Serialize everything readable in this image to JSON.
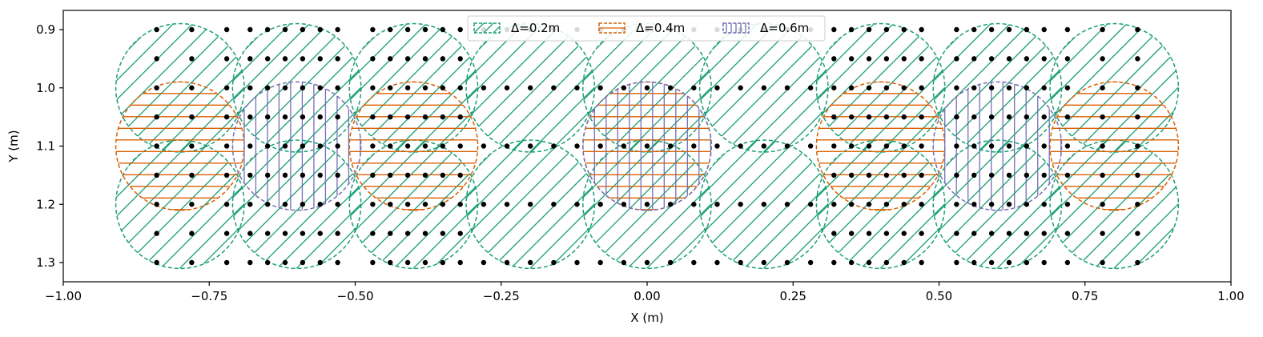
{
  "chart_data": {
    "type": "scatter",
    "title": "",
    "xlabel": "X (m)",
    "ylabel": "Y (m)",
    "xlim": [
      -1.0,
      1.0
    ],
    "ylim": [
      0.9,
      1.3
    ],
    "y_inverted": true,
    "grid": false,
    "legend_placement": "top-center",
    "x_ticks": [
      {
        "value": -1.0,
        "label": "−1.00"
      },
      {
        "value": -0.75,
        "label": "−0.75"
      },
      {
        "value": -0.5,
        "label": "−0.50"
      },
      {
        "value": -0.25,
        "label": "−0.25"
      },
      {
        "value": 0.0,
        "label": "0.00"
      },
      {
        "value": 0.25,
        "label": "0.25"
      },
      {
        "value": 0.5,
        "label": "0.50"
      },
      {
        "value": 0.75,
        "label": "0.75"
      },
      {
        "value": 1.0,
        "label": "1.00"
      }
    ],
    "y_ticks": [
      {
        "value": 0.9,
        "label": "0.9"
      },
      {
        "value": 1.0,
        "label": "1.0"
      },
      {
        "value": 1.1,
        "label": "1.1"
      },
      {
        "value": 1.2,
        "label": "1.2"
      },
      {
        "value": 1.3,
        "label": "1.3"
      }
    ],
    "circle_radius": 0.11,
    "legend": [
      {
        "name": "Δ=0.2m",
        "color": "#1b9e77",
        "hatch": "diagonal"
      },
      {
        "name": "Δ=0.4m",
        "color": "#d95f02",
        "hatch": "horizontal"
      },
      {
        "name": "Δ=0.6m",
        "color": "#7570b3",
        "hatch": "vertical"
      }
    ],
    "regions": [
      {
        "x": -0.8,
        "y": 1.0,
        "delta": 0.2
      },
      {
        "x": -0.8,
        "y": 1.2,
        "delta": 0.2
      },
      {
        "x": -0.6,
        "y": 1.0,
        "delta": 0.2
      },
      {
        "x": -0.6,
        "y": 1.2,
        "delta": 0.2
      },
      {
        "x": -0.4,
        "y": 1.0,
        "delta": 0.2
      },
      {
        "x": -0.4,
        "y": 1.2,
        "delta": 0.2
      },
      {
        "x": -0.2,
        "y": 1.0,
        "delta": 0.2
      },
      {
        "x": -0.2,
        "y": 1.2,
        "delta": 0.2
      },
      {
        "x": 0.0,
        "y": 1.0,
        "delta": 0.2
      },
      {
        "x": 0.0,
        "y": 1.2,
        "delta": 0.2
      },
      {
        "x": 0.2,
        "y": 1.0,
        "delta": 0.2
      },
      {
        "x": 0.2,
        "y": 1.2,
        "delta": 0.2
      },
      {
        "x": 0.4,
        "y": 1.0,
        "delta": 0.2
      },
      {
        "x": 0.4,
        "y": 1.2,
        "delta": 0.2
      },
      {
        "x": 0.6,
        "y": 1.0,
        "delta": 0.2
      },
      {
        "x": 0.6,
        "y": 1.2,
        "delta": 0.2
      },
      {
        "x": 0.8,
        "y": 1.0,
        "delta": 0.2
      },
      {
        "x": 0.8,
        "y": 1.2,
        "delta": 0.2
      },
      {
        "x": -0.8,
        "y": 1.1,
        "delta": 0.4
      },
      {
        "x": -0.4,
        "y": 1.1,
        "delta": 0.4
      },
      {
        "x": 0.0,
        "y": 1.1,
        "delta": 0.4
      },
      {
        "x": 0.4,
        "y": 1.1,
        "delta": 0.4
      },
      {
        "x": 0.8,
        "y": 1.1,
        "delta": 0.4
      },
      {
        "x": -0.6,
        "y": 1.1,
        "delta": 0.6
      },
      {
        "x": 0.0,
        "y": 1.1,
        "delta": 0.6
      },
      {
        "x": 0.6,
        "y": 1.1,
        "delta": 0.6
      }
    ],
    "point_rows": [
      0.9,
      0.95,
      1.0,
      1.05,
      1.1,
      1.15,
      1.2,
      1.25,
      1.3
    ],
    "point_groups": [
      {
        "xs": [
          -0.84,
          -0.78,
          -0.72
        ],
        "pattern": "dense"
      },
      {
        "xs": [
          -0.68,
          -0.65,
          -0.62,
          -0.59,
          -0.56,
          -0.53
        ],
        "pattern": "dense"
      },
      {
        "xs": [
          -0.47,
          -0.44,
          -0.41,
          -0.38,
          -0.35,
          -0.32
        ],
        "pattern": "dense"
      },
      {
        "xs": [
          -0.28,
          -0.24,
          -0.2,
          -0.16,
          -0.12
        ],
        "pattern": "sparse"
      },
      {
        "xs": [
          -0.08,
          -0.04,
          0.0,
          0.04,
          0.08
        ],
        "pattern": "sparse"
      },
      {
        "xs": [
          0.12,
          0.16,
          0.2,
          0.24,
          0.28
        ],
        "pattern": "sparse"
      },
      {
        "xs": [
          0.32,
          0.35,
          0.38,
          0.41,
          0.44,
          0.47
        ],
        "pattern": "dense"
      },
      {
        "xs": [
          0.53,
          0.56,
          0.59,
          0.62,
          0.65,
          0.68
        ],
        "pattern": "dense"
      },
      {
        "xs": [
          0.72,
          0.78,
          0.84
        ],
        "pattern": "dense"
      }
    ]
  }
}
